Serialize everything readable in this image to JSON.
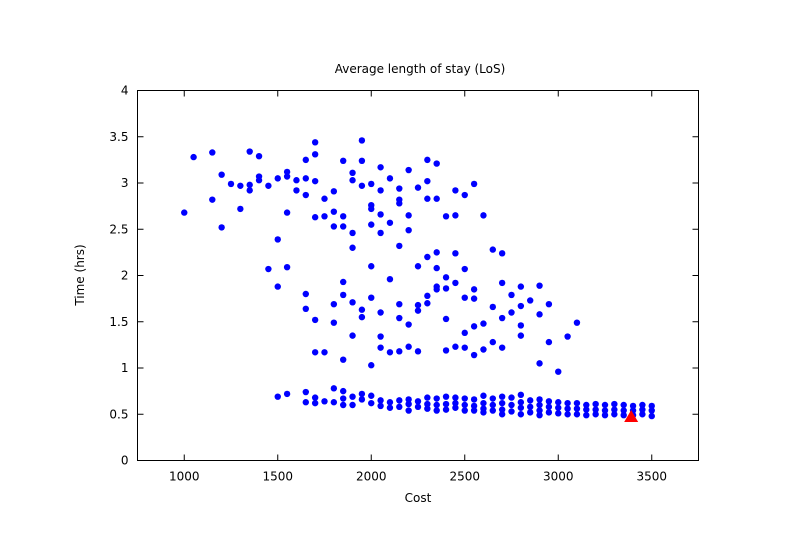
{
  "chart_data": {
    "type": "scatter",
    "title": "Average length of stay (LoS)",
    "xlabel": "Cost",
    "ylabel": "Time (hrs)",
    "xlim": [
      750,
      3750
    ],
    "ylim": [
      0,
      4
    ],
    "xticks": [
      1000,
      1500,
      2000,
      2500,
      3000,
      3500
    ],
    "yticks": [
      0,
      0.5,
      1,
      1.5,
      2,
      2.5,
      3,
      3.5,
      4
    ],
    "grid": false,
    "legend": "none",
    "series": [
      {
        "marker": "circle",
        "color": "#0000ff",
        "points": [
          [
            1000,
            2.68
          ],
          [
            1050,
            3.28
          ],
          [
            1150,
            3.33
          ],
          [
            1150,
            2.82
          ],
          [
            1200,
            3.09
          ],
          [
            1200,
            2.52
          ],
          [
            1250,
            2.99
          ],
          [
            1300,
            2.97
          ],
          [
            1300,
            2.72
          ],
          [
            1350,
            3.34
          ],
          [
            1350,
            2.98
          ],
          [
            1350,
            2.92
          ],
          [
            1400,
            3.29
          ],
          [
            1400,
            3.07
          ],
          [
            1400,
            3.03
          ],
          [
            1450,
            2.97
          ],
          [
            1450,
            2.07
          ],
          [
            1500,
            3.05
          ],
          [
            1500,
            2.39
          ],
          [
            1500,
            1.88
          ],
          [
            1500,
            0.69
          ],
          [
            1550,
            3.12
          ],
          [
            1550,
            3.07
          ],
          [
            1550,
            2.68
          ],
          [
            1550,
            2.09
          ],
          [
            1550,
            0.72
          ],
          [
            1600,
            3.03
          ],
          [
            1600,
            2.92
          ],
          [
            1650,
            3.25
          ],
          [
            1650,
            3.05
          ],
          [
            1650,
            2.87
          ],
          [
            1650,
            1.8
          ],
          [
            1650,
            1.64
          ],
          [
            1650,
            0.74
          ],
          [
            1650,
            0.63
          ],
          [
            1700,
            3.44
          ],
          [
            1700,
            3.31
          ],
          [
            1700,
            3.02
          ],
          [
            1700,
            2.63
          ],
          [
            1700,
            1.52
          ],
          [
            1700,
            1.17
          ],
          [
            1700,
            0.68
          ],
          [
            1700,
            0.62
          ],
          [
            1750,
            2.83
          ],
          [
            1750,
            2.64
          ],
          [
            1750,
            1.17
          ],
          [
            1750,
            0.64
          ],
          [
            1800,
            2.91
          ],
          [
            1800,
            2.69
          ],
          [
            1800,
            2.53
          ],
          [
            1800,
            1.69
          ],
          [
            1800,
            1.49
          ],
          [
            1800,
            0.78
          ],
          [
            1800,
            0.63
          ],
          [
            1850,
            3.24
          ],
          [
            1850,
            2.64
          ],
          [
            1850,
            2.53
          ],
          [
            1850,
            1.93
          ],
          [
            1850,
            1.79
          ],
          [
            1850,
            1.09
          ],
          [
            1850,
            0.75
          ],
          [
            1850,
            0.67
          ],
          [
            1850,
            0.6
          ],
          [
            1900,
            3.11
          ],
          [
            1900,
            3.03
          ],
          [
            1900,
            2.46
          ],
          [
            1900,
            2.3
          ],
          [
            1900,
            1.71
          ],
          [
            1900,
            1.35
          ],
          [
            1900,
            0.69
          ],
          [
            1900,
            0.6
          ],
          [
            1950,
            3.46
          ],
          [
            1950,
            3.24
          ],
          [
            1950,
            2.97
          ],
          [
            1950,
            1.55
          ],
          [
            1950,
            1.63
          ],
          [
            1950,
            0.72
          ],
          [
            1950,
            0.66
          ],
          [
            2000,
            2.99
          ],
          [
            2000,
            2.76
          ],
          [
            2000,
            2.72
          ],
          [
            2000,
            2.55
          ],
          [
            2000,
            2.1
          ],
          [
            2000,
            1.76
          ],
          [
            2000,
            1.03
          ],
          [
            2000,
            0.7
          ],
          [
            2000,
            0.62
          ],
          [
            2050,
            3.17
          ],
          [
            2050,
            2.92
          ],
          [
            2050,
            2.66
          ],
          [
            2050,
            2.46
          ],
          [
            2050,
            1.6
          ],
          [
            2050,
            1.34
          ],
          [
            2050,
            1.22
          ],
          [
            2050,
            0.65
          ],
          [
            2050,
            0.59
          ],
          [
            2100,
            3.05
          ],
          [
            2100,
            2.57
          ],
          [
            2100,
            1.96
          ],
          [
            2100,
            1.17
          ],
          [
            2100,
            0.63
          ],
          [
            2100,
            0.57
          ],
          [
            2150,
            2.94
          ],
          [
            2150,
            2.82
          ],
          [
            2150,
            2.78
          ],
          [
            2150,
            2.32
          ],
          [
            2150,
            1.69
          ],
          [
            2150,
            1.54
          ],
          [
            2150,
            1.18
          ],
          [
            2150,
            0.65
          ],
          [
            2150,
            0.58
          ],
          [
            2200,
            3.14
          ],
          [
            2200,
            2.65
          ],
          [
            2200,
            2.49
          ],
          [
            2200,
            1.47
          ],
          [
            2200,
            1.23
          ],
          [
            2200,
            0.66
          ],
          [
            2200,
            0.61
          ],
          [
            2200,
            0.54
          ],
          [
            2250,
            2.95
          ],
          [
            2250,
            2.1
          ],
          [
            2250,
            1.62
          ],
          [
            2250,
            1.68
          ],
          [
            2250,
            1.18
          ],
          [
            2250,
            0.64
          ],
          [
            2250,
            0.58
          ],
          [
            2300,
            3.25
          ],
          [
            2300,
            3.02
          ],
          [
            2300,
            2.83
          ],
          [
            2300,
            2.2
          ],
          [
            2300,
            1.78
          ],
          [
            2300,
            1.7
          ],
          [
            2300,
            0.68
          ],
          [
            2300,
            0.61
          ],
          [
            2300,
            0.56
          ],
          [
            2350,
            3.21
          ],
          [
            2350,
            2.83
          ],
          [
            2350,
            2.25
          ],
          [
            2350,
            2.08
          ],
          [
            2350,
            1.88
          ],
          [
            2350,
            1.85
          ],
          [
            2350,
            0.67
          ],
          [
            2350,
            0.6
          ],
          [
            2350,
            0.54
          ],
          [
            2400,
            2.64
          ],
          [
            2400,
            1.98
          ],
          [
            2400,
            1.86
          ],
          [
            2400,
            1.53
          ],
          [
            2400,
            1.19
          ],
          [
            2400,
            0.69
          ],
          [
            2400,
            0.61
          ],
          [
            2400,
            0.55
          ],
          [
            2450,
            2.92
          ],
          [
            2450,
            2.65
          ],
          [
            2450,
            2.24
          ],
          [
            2450,
            1.92
          ],
          [
            2450,
            1.23
          ],
          [
            2450,
            0.68
          ],
          [
            2450,
            0.62
          ],
          [
            2450,
            0.57
          ],
          [
            2500,
            2.87
          ],
          [
            2500,
            2.07
          ],
          [
            2500,
            1.76
          ],
          [
            2500,
            1.38
          ],
          [
            2500,
            1.22
          ],
          [
            2500,
            0.67
          ],
          [
            2500,
            0.6
          ],
          [
            2500,
            0.54
          ],
          [
            2550,
            2.99
          ],
          [
            2550,
            1.85
          ],
          [
            2550,
            1.75
          ],
          [
            2550,
            1.45
          ],
          [
            2550,
            1.14
          ],
          [
            2550,
            0.66
          ],
          [
            2550,
            0.59
          ],
          [
            2550,
            0.54
          ],
          [
            2600,
            2.65
          ],
          [
            2600,
            1.48
          ],
          [
            2600,
            1.2
          ],
          [
            2600,
            0.7
          ],
          [
            2600,
            0.62
          ],
          [
            2600,
            0.56
          ],
          [
            2600,
            0.52
          ],
          [
            2650,
            2.28
          ],
          [
            2650,
            1.66
          ],
          [
            2650,
            1.28
          ],
          [
            2650,
            0.67
          ],
          [
            2650,
            0.6
          ],
          [
            2650,
            0.54
          ],
          [
            2700,
            2.24
          ],
          [
            2700,
            1.92
          ],
          [
            2700,
            1.54
          ],
          [
            2700,
            1.22
          ],
          [
            2700,
            0.69
          ],
          [
            2700,
            0.62
          ],
          [
            2700,
            0.55
          ],
          [
            2700,
            0.5
          ],
          [
            2750,
            1.79
          ],
          [
            2750,
            1.6
          ],
          [
            2750,
            0.68
          ],
          [
            2750,
            0.6
          ],
          [
            2750,
            0.53
          ],
          [
            2800,
            1.88
          ],
          [
            2800,
            1.67
          ],
          [
            2800,
            1.46
          ],
          [
            2800,
            1.35
          ],
          [
            2800,
            0.71
          ],
          [
            2800,
            0.63
          ],
          [
            2800,
            0.57
          ],
          [
            2800,
            0.5
          ],
          [
            2850,
            1.73
          ],
          [
            2850,
            0.65
          ],
          [
            2850,
            0.58
          ],
          [
            2850,
            0.52
          ],
          [
            2900,
            1.89
          ],
          [
            2900,
            1.58
          ],
          [
            2900,
            1.05
          ],
          [
            2900,
            0.66
          ],
          [
            2900,
            0.6
          ],
          [
            2900,
            0.54
          ],
          [
            2900,
            0.49
          ],
          [
            2950,
            1.69
          ],
          [
            2950,
            1.28
          ],
          [
            2950,
            0.64
          ],
          [
            2950,
            0.58
          ],
          [
            2950,
            0.52
          ],
          [
            3000,
            0.96
          ],
          [
            3000,
            0.63
          ],
          [
            3000,
            0.57
          ],
          [
            3000,
            0.51
          ],
          [
            3050,
            1.34
          ],
          [
            3050,
            0.62
          ],
          [
            3050,
            0.56
          ],
          [
            3050,
            0.5
          ],
          [
            3100,
            1.49
          ],
          [
            3100,
            0.62
          ],
          [
            3100,
            0.56
          ],
          [
            3100,
            0.5
          ],
          [
            3150,
            0.6
          ],
          [
            3150,
            0.55
          ],
          [
            3150,
            0.49
          ],
          [
            3200,
            0.61
          ],
          [
            3200,
            0.55
          ],
          [
            3200,
            0.5
          ],
          [
            3250,
            0.6
          ],
          [
            3250,
            0.54
          ],
          [
            3250,
            0.49
          ],
          [
            3300,
            0.61
          ],
          [
            3300,
            0.55
          ],
          [
            3300,
            0.5
          ],
          [
            3350,
            0.6
          ],
          [
            3350,
            0.54
          ],
          [
            3350,
            0.49
          ],
          [
            3400,
            0.59
          ],
          [
            3400,
            0.54
          ],
          [
            3400,
            0.49
          ],
          [
            3450,
            0.6
          ],
          [
            3450,
            0.55
          ],
          [
            3450,
            0.5
          ],
          [
            3500,
            0.59
          ],
          [
            3500,
            0.54
          ],
          [
            3500,
            0.48
          ]
        ]
      },
      {
        "marker": "triangle",
        "color": "#ff0000",
        "points": [
          [
            3390,
            0.47
          ]
        ]
      }
    ]
  }
}
